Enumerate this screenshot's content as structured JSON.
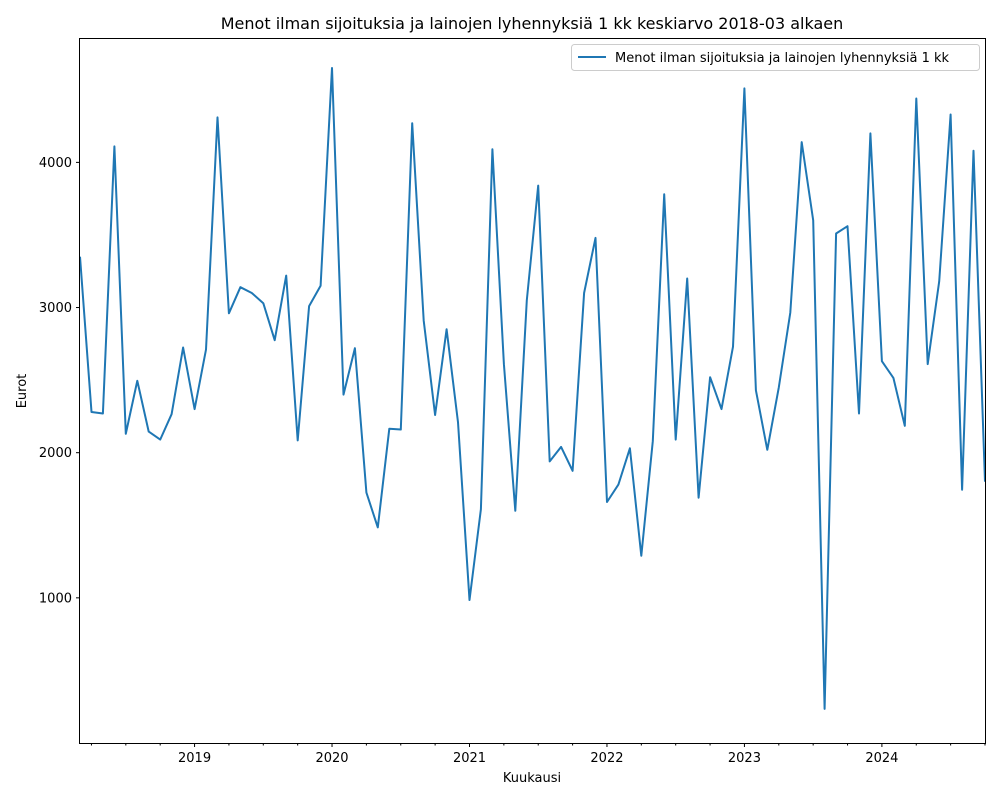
{
  "chart_data": {
    "type": "line",
    "title": "Menot ilman sijoituksia ja lainojen lyhennyksiä 1 kk keskiarvo 2018-03 alkaen",
    "xlabel": "Kuukausi",
    "ylabel": "Eurot",
    "x_start": "2018-03",
    "x_end": "2024-10",
    "ylim": [
      0,
      4850
    ],
    "yticks": [
      1000,
      2000,
      3000,
      4000
    ],
    "xticks": [
      "2019",
      "2020",
      "2021",
      "2022",
      "2023",
      "2024"
    ],
    "grid": false,
    "legend": "upper right",
    "color": "#1f77b4",
    "series": [
      {
        "name": "Menot ilman sijoituksia ja lainojen lyhennyksiä 1 kk",
        "x": [
          "2018-03",
          "2018-04",
          "2018-05",
          "2018-06",
          "2018-07",
          "2018-08",
          "2018-09",
          "2018-10",
          "2018-11",
          "2018-12",
          "2019-01",
          "2019-02",
          "2019-03",
          "2019-04",
          "2019-05",
          "2019-06",
          "2019-07",
          "2019-08",
          "2019-09",
          "2019-10",
          "2019-11",
          "2019-12",
          "2020-01",
          "2020-02",
          "2020-03",
          "2020-04",
          "2020-05",
          "2020-06",
          "2020-07",
          "2020-08",
          "2020-09",
          "2020-10",
          "2020-11",
          "2020-12",
          "2021-01",
          "2021-02",
          "2021-03",
          "2021-04",
          "2021-05",
          "2021-06",
          "2021-07",
          "2021-08",
          "2021-09",
          "2021-10",
          "2021-11",
          "2021-12",
          "2022-01",
          "2022-02",
          "2022-03",
          "2022-04",
          "2022-05",
          "2022-06",
          "2022-07",
          "2022-08",
          "2022-09",
          "2022-10",
          "2022-11",
          "2022-12",
          "2023-01",
          "2023-02",
          "2023-03",
          "2023-04",
          "2023-05",
          "2023-06",
          "2023-07",
          "2023-08",
          "2023-09",
          "2023-10",
          "2023-11",
          "2023-12",
          "2024-01",
          "2024-02",
          "2024-03",
          "2024-04",
          "2024-05",
          "2024-06",
          "2024-07",
          "2024-08",
          "2024-09",
          "2024-10"
        ],
        "values": [
          3350,
          2280,
          2270,
          4110,
          2130,
          2495,
          2145,
          2090,
          2265,
          2725,
          2300,
          2710,
          4310,
          2960,
          3140,
          3100,
          3030,
          2775,
          3220,
          2085,
          3010,
          3150,
          4650,
          2400,
          2720,
          1725,
          1485,
          2165,
          2160,
          4270,
          2910,
          2260,
          2850,
          2210,
          985,
          1610,
          4090,
          2610,
          1600,
          3050,
          3840,
          1940,
          2040,
          1875,
          3100,
          3480,
          1660,
          1780,
          2030,
          1290,
          2080,
          3780,
          2090,
          3200,
          1690,
          2520,
          2300,
          2730,
          4510,
          2430,
          2020,
          2450,
          2965,
          4140,
          3600,
          235,
          3510,
          3560,
          2270,
          4200,
          2630,
          2515,
          2185,
          4440,
          2610,
          3180,
          4330,
          1745,
          4080,
          1800
        ]
      }
    ]
  }
}
